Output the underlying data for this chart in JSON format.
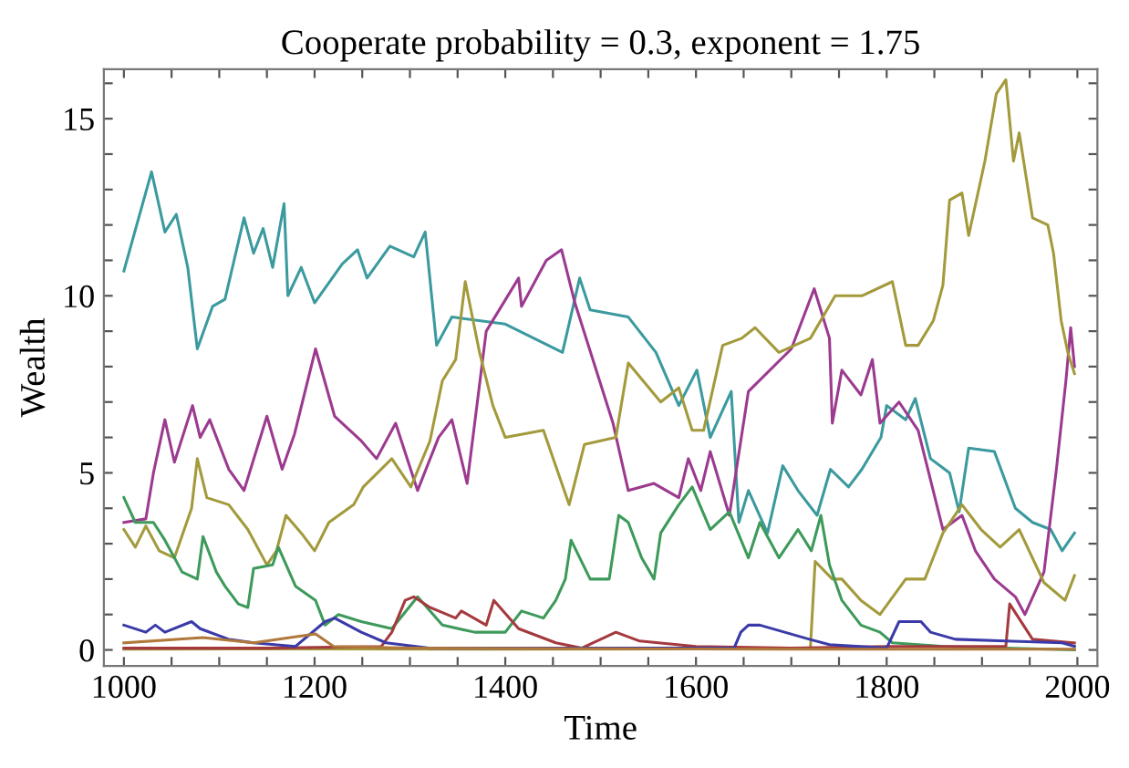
{
  "chart_data": {
    "type": "line",
    "title": "Cooperate probability = 0.3, exponent = 1.75",
    "xlabel": "Time",
    "ylabel": "Wealth",
    "xlim": [
      979,
      2021
    ],
    "ylim": [
      -0.45,
      16.4
    ],
    "xticks": [
      1000,
      {
        "value": 1050,
        "label": null
      },
      1200,
      {
        "value": 1100,
        "label": null
      },
      {
        "value": 1150,
        "label": null
      },
      {
        "value": 1250,
        "label": null
      },
      {
        "value": 1300,
        "label": null
      },
      {
        "value": 1350,
        "label": null
      },
      1400,
      {
        "value": 1450,
        "label": null
      },
      {
        "value": 1500,
        "label": null
      },
      {
        "value": 1550,
        "label": null
      },
      1600,
      {
        "value": 1650,
        "label": null
      },
      {
        "value": 1700,
        "label": null
      },
      {
        "value": 1750,
        "label": null
      },
      1800,
      {
        "value": 1850,
        "label": null
      },
      {
        "value": 1900,
        "label": null
      },
      {
        "value": 1950,
        "label": null
      },
      2000
    ],
    "yticks": [
      0,
      {
        "value": 1,
        "label": null
      },
      {
        "value": 2,
        "label": null
      },
      {
        "value": 3,
        "label": null
      },
      {
        "value": 4,
        "label": null
      },
      5,
      {
        "value": 6,
        "label": null
      },
      {
        "value": 7,
        "label": null
      },
      {
        "value": 8,
        "label": null
      },
      {
        "value": 9,
        "label": null
      },
      10,
      {
        "value": 11,
        "label": null
      },
      {
        "value": 12,
        "label": null
      },
      {
        "value": 13,
        "label": null
      },
      {
        "value": 14,
        "label": null
      },
      15,
      {
        "value": 16,
        "label": null
      }
    ],
    "grid": false,
    "legend": false,
    "marker": "none",
    "line_style": "solid",
    "series": [
      {
        "color": "#3b9a9e",
        "x": [
          1000,
          1029,
          1043,
          1055,
          1067,
          1077,
          1093,
          1106,
          1126,
          1136,
          1146,
          1156,
          1168,
          1172,
          1186,
          1200,
          1229,
          1245,
          1255,
          1279,
          1304,
          1316,
          1328,
          1344,
          1400,
          1460,
          1478,
          1489,
          1529,
          1558,
          1582,
          1601,
          1615,
          1637,
          1645,
          1655,
          1675,
          1691,
          1707,
          1727,
          1741,
          1760,
          1774,
          1794,
          1800,
          1820,
          1830,
          1846,
          1866,
          1876,
          1886,
          1913,
          1935,
          1953,
          1972,
          1984,
          1997
        ],
        "values": [
          10.7,
          13.5,
          11.8,
          12.3,
          10.8,
          8.5,
          9.7,
          9.9,
          12.2,
          11.2,
          11.9,
          10.8,
          12.6,
          10.0,
          10.8,
          9.8,
          10.9,
          11.3,
          10.5,
          11.4,
          11.1,
          11.8,
          8.6,
          9.4,
          9.2,
          8.4,
          10.5,
          9.6,
          9.4,
          8.4,
          6.9,
          7.9,
          6.0,
          7.3,
          3.6,
          4.5,
          3.3,
          5.2,
          4.5,
          3.8,
          5.1,
          4.6,
          5.1,
          6.0,
          6.9,
          6.5,
          7.1,
          5.4,
          5.0,
          3.9,
          5.7,
          5.6,
          4.0,
          3.6,
          3.4,
          2.8,
          3.3
        ]
      },
      {
        "color": "#9b3a8f",
        "x": [
          1000,
          1023,
          1031,
          1043,
          1053,
          1072,
          1080,
          1090,
          1110,
          1126,
          1150,
          1166,
          1179,
          1201,
          1221,
          1249,
          1265,
          1285,
          1308,
          1330,
          1344,
          1360,
          1380,
          1414,
          1417,
          1443,
          1459,
          1473,
          1493,
          1513,
          1529,
          1556,
          1582,
          1592,
          1605,
          1615,
          1635,
          1655,
          1700,
          1724,
          1740,
          1743,
          1753,
          1773,
          1785,
          1793,
          1813,
          1833,
          1859,
          1879,
          1893,
          1913,
          1935,
          1945,
          1965,
          1978,
          1988,
          1993,
          1997
        ],
        "values": [
          3.6,
          3.7,
          5.0,
          6.5,
          5.3,
          6.9,
          6.0,
          6.5,
          5.1,
          4.5,
          6.6,
          5.1,
          6.1,
          8.5,
          6.6,
          5.9,
          5.4,
          6.4,
          4.5,
          6.0,
          6.5,
          4.7,
          9.0,
          10.5,
          9.7,
          11.0,
          11.3,
          9.8,
          8.1,
          6.4,
          4.5,
          4.7,
          4.3,
          5.4,
          4.5,
          5.6,
          3.8,
          7.3,
          8.5,
          10.2,
          8.8,
          6.4,
          7.9,
          7.2,
          8.2,
          6.4,
          7.0,
          6.2,
          3.4,
          3.8,
          2.8,
          2.0,
          1.5,
          1.0,
          2.2,
          5.1,
          7.6,
          9.1,
          8.0
        ]
      },
      {
        "color": "#a39a3c",
        "x": [
          1000,
          1012,
          1023,
          1037,
          1053,
          1071,
          1077,
          1087,
          1110,
          1130,
          1150,
          1160,
          1170,
          1186,
          1200,
          1215,
          1241,
          1251,
          1281,
          1301,
          1321,
          1334,
          1348,
          1358,
          1373,
          1387,
          1400,
          1440,
          1467,
          1483,
          1516,
          1529,
          1563,
          1582,
          1596,
          1608,
          1628,
          1648,
          1662,
          1687,
          1720,
          1746,
          1774,
          1806,
          1820,
          1833,
          1849,
          1859,
          1866,
          1879,
          1886,
          1903,
          1915,
          1925,
          1933,
          1939,
          1953,
          1969,
          1975,
          1983,
          1990,
          1997
        ],
        "values": [
          3.4,
          2.9,
          3.5,
          2.8,
          2.6,
          4.0,
          5.4,
          4.3,
          4.1,
          3.4,
          2.4,
          2.8,
          3.8,
          3.3,
          2.8,
          3.6,
          4.1,
          4.6,
          5.4,
          4.6,
          5.9,
          7.6,
          8.2,
          10.4,
          8.4,
          6.9,
          6.0,
          6.2,
          4.1,
          5.8,
          6.0,
          8.1,
          7.0,
          7.4,
          6.2,
          6.2,
          8.6,
          8.8,
          9.1,
          8.4,
          8.8,
          10.0,
          10.0,
          10.4,
          8.6,
          8.6,
          9.3,
          10.3,
          12.7,
          12.9,
          11.7,
          13.8,
          15.7,
          16.1,
          13.8,
          14.6,
          12.2,
          12.0,
          11.2,
          9.3,
          8.4,
          7.8
        ]
      },
      {
        "color": "#a39a3c",
        "x": [
          1000,
          1200,
          1400,
          1600,
          1720,
          1725,
          1743,
          1753,
          1773,
          1793,
          1820,
          1840,
          1859,
          1879,
          1899,
          1919,
          1939,
          1965,
          1987,
          1997
        ],
        "values": [
          0.02,
          0.03,
          0.02,
          0.03,
          0.05,
          2.5,
          2.0,
          2.0,
          1.4,
          1.0,
          2.0,
          2.0,
          3.3,
          4.1,
          3.4,
          2.9,
          3.4,
          1.9,
          1.4,
          2.1
        ]
      },
      {
        "color": "#3d9a5a",
        "x": [
          1000,
          1012,
          1031,
          1043,
          1053,
          1061,
          1077,
          1083,
          1097,
          1106,
          1120,
          1130,
          1136,
          1156,
          1162,
          1180,
          1201,
          1211,
          1225,
          1249,
          1281,
          1308,
          1334,
          1368,
          1400,
          1417,
          1440,
          1453,
          1463,
          1469,
          1489,
          1509,
          1519,
          1529,
          1543,
          1556,
          1563,
          1582,
          1596,
          1615,
          1635,
          1655,
          1667,
          1687,
          1707,
          1721,
          1731,
          1740,
          1753,
          1773,
          1793,
          1806,
          1859,
          1997
        ],
        "values": [
          4.3,
          3.6,
          3.6,
          3.1,
          2.6,
          2.2,
          2.0,
          3.2,
          2.2,
          1.8,
          1.3,
          1.2,
          2.3,
          2.4,
          2.9,
          1.8,
          1.4,
          0.7,
          1.0,
          0.8,
          0.6,
          1.5,
          0.7,
          0.5,
          0.5,
          1.1,
          0.9,
          1.4,
          2.0,
          3.1,
          2.0,
          2.0,
          3.8,
          3.6,
          2.6,
          2.0,
          3.3,
          4.1,
          4.6,
          3.4,
          3.9,
          2.6,
          3.6,
          2.6,
          3.4,
          2.8,
          3.8,
          2.4,
          1.4,
          0.7,
          0.5,
          0.2,
          0.1,
          0.0
        ]
      },
      {
        "color": "#a53a3e",
        "x": [
          1000,
          1150,
          1270,
          1281,
          1295,
          1304,
          1321,
          1348,
          1354,
          1380,
          1388,
          1414,
          1453,
          1480,
          1516,
          1541,
          1600,
          1700,
          1800,
          1925,
          1929,
          1953,
          1997
        ],
        "values": [
          0.05,
          0.05,
          0.1,
          0.5,
          1.4,
          1.5,
          1.2,
          0.9,
          1.1,
          0.7,
          1.4,
          0.6,
          0.2,
          0.05,
          0.5,
          0.25,
          0.1,
          0.05,
          0.1,
          0.1,
          1.3,
          0.3,
          0.2
        ]
      },
      {
        "color": "#3a3aa8",
        "x": [
          1000,
          1023,
          1033,
          1043,
          1071,
          1080,
          1110,
          1136,
          1180,
          1211,
          1221,
          1249,
          1275,
          1320,
          1640,
          1647,
          1655,
          1667,
          1693,
          1719,
          1740,
          1800,
          1813,
          1836,
          1846,
          1872,
          1925,
          1984,
          1997
        ],
        "values": [
          0.7,
          0.5,
          0.7,
          0.5,
          0.8,
          0.6,
          0.3,
          0.2,
          0.1,
          0.8,
          0.9,
          0.5,
          0.2,
          0.05,
          0.05,
          0.5,
          0.7,
          0.7,
          0.5,
          0.3,
          0.15,
          0.05,
          0.8,
          0.8,
          0.5,
          0.3,
          0.25,
          0.2,
          0.1
        ]
      },
      {
        "color": "#b0783a",
        "x": [
          1000,
          1083,
          1136,
          1201,
          1220,
          1300,
          1500,
          1700,
          1900,
          1997
        ],
        "values": [
          0.2,
          0.35,
          0.2,
          0.45,
          0.1,
          0.05,
          0.03,
          0.02,
          0.02,
          0.02
        ]
      }
    ]
  }
}
